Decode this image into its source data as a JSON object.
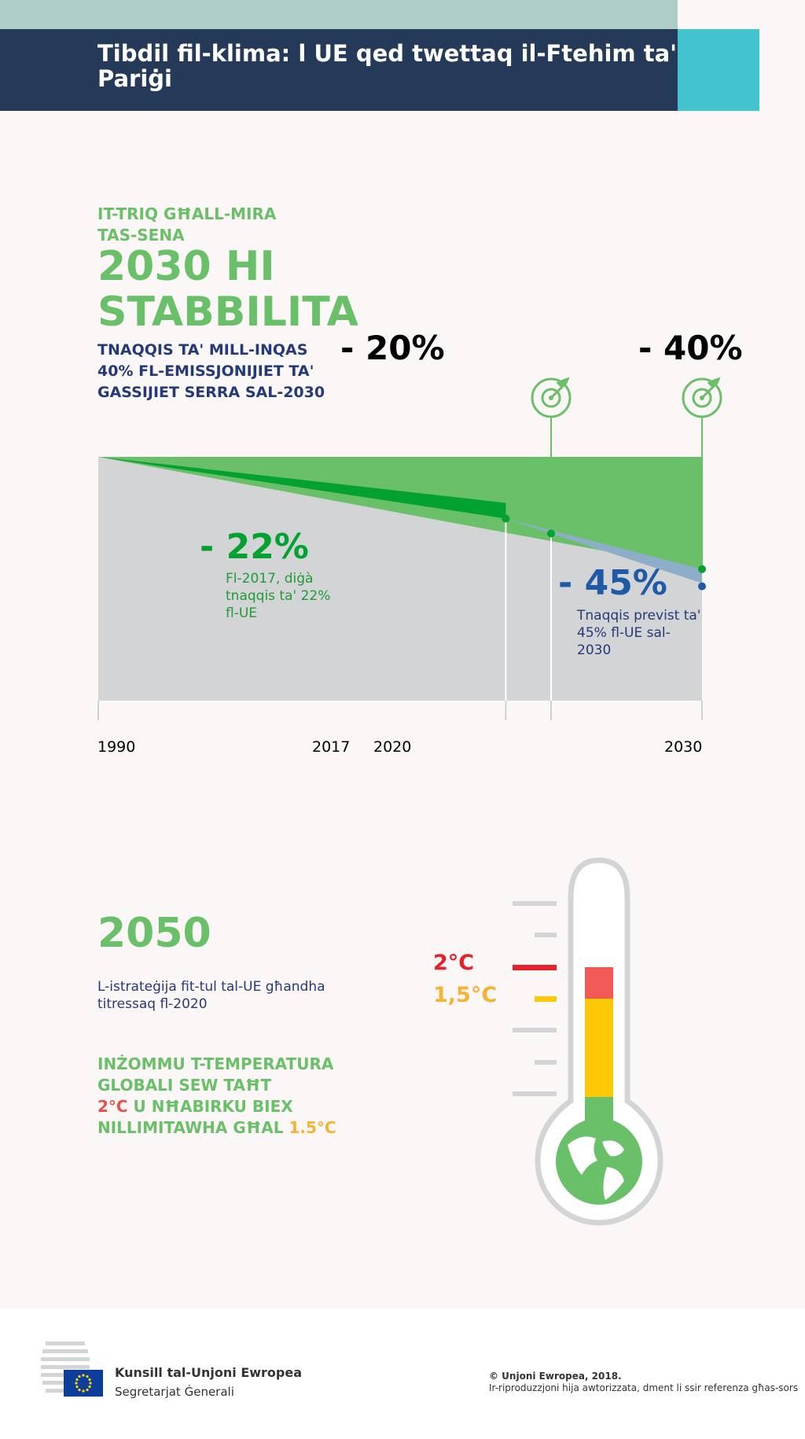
{
  "header": {
    "title": "Tibdil fil-klima: l UE qed twettaq il-Ftehim ta' Pariġi"
  },
  "section2030": {
    "subtitle_line1": "IT-TRIQ GĦALL-MIRA",
    "subtitle_line2": "TAS-SENA",
    "headline_line1": "2030 HI",
    "headline_line2": "STABBILITA",
    "description": "TNAQQIS TA' MILL-INQAS 40% FL-EMISSJONIJIET TA' GASSIJIET SERRA SAL-2030"
  },
  "chart_data": {
    "type": "area",
    "x": [
      1990,
      2017,
      2020,
      2030
    ],
    "tick_labels": [
      "1990",
      "2017",
      "2020",
      "2030"
    ],
    "series": [
      {
        "name": "",
        "values": [
          0,
          -22,
          null,
          null
        ]
      },
      {
        "name": "",
        "values": [
          0,
          null,
          -20,
          -40
        ]
      },
      {
        "name": "",
        "values": [
          0,
          -22,
          null,
          -45
        ]
      }
    ],
    "targets": [
      {
        "x": 2020,
        "label": "- 20%",
        "value": -20
      },
      {
        "x": 2030,
        "label": "- 40%",
        "value": -40
      }
    ],
    "annotations": [
      {
        "label": "- 22%",
        "text": "Fl-2017, diġà tnaqqis ta' 22% fl-UE",
        "value": -22
      },
      {
        "label": "- 45%",
        "text": "Tnaqqis previst ta' 45% fl-UE sal-2030",
        "value": -45
      }
    ],
    "colors": {
      "target_area": "#6abf69",
      "actual": "#03a12f",
      "projected": "#8daec9",
      "baseline": "#d3d4d6",
      "navy_point": "#1f5aa6"
    }
  },
  "section2050": {
    "year": "2050",
    "strategy": "L-istrateġija fit-tul tal-UE għandha titressaq fl-2020",
    "keep_line1": "INŻOMMU T-TEMPERATURA",
    "keep_line2": "GLOBALI SEW TAĦT",
    "keep_red": "2°C",
    "keep_line3_rest": " U NĦABIRKU BIEX",
    "keep_line4": "NILLIMITAWHA GĦAL ",
    "keep_amber": "1.5°C",
    "thermo_label_2": "2°C",
    "thermo_label_15": "1,5°C"
  },
  "footer": {
    "council": "Kunsill tal-Unjoni Ewropea",
    "secretariat": "Segretarjat Ġenerali",
    "copyright": "© Unjoni Ewropea, 2018.",
    "reproduction": "Ir-riproduzzjoni hija awtorizzata, dment li ssir referenza għas-sors"
  },
  "colors": {
    "green": "#6abf69",
    "navy": "#243a58",
    "teal": "#43c3cd",
    "red": "#e8504d",
    "amber": "#f5b233"
  }
}
